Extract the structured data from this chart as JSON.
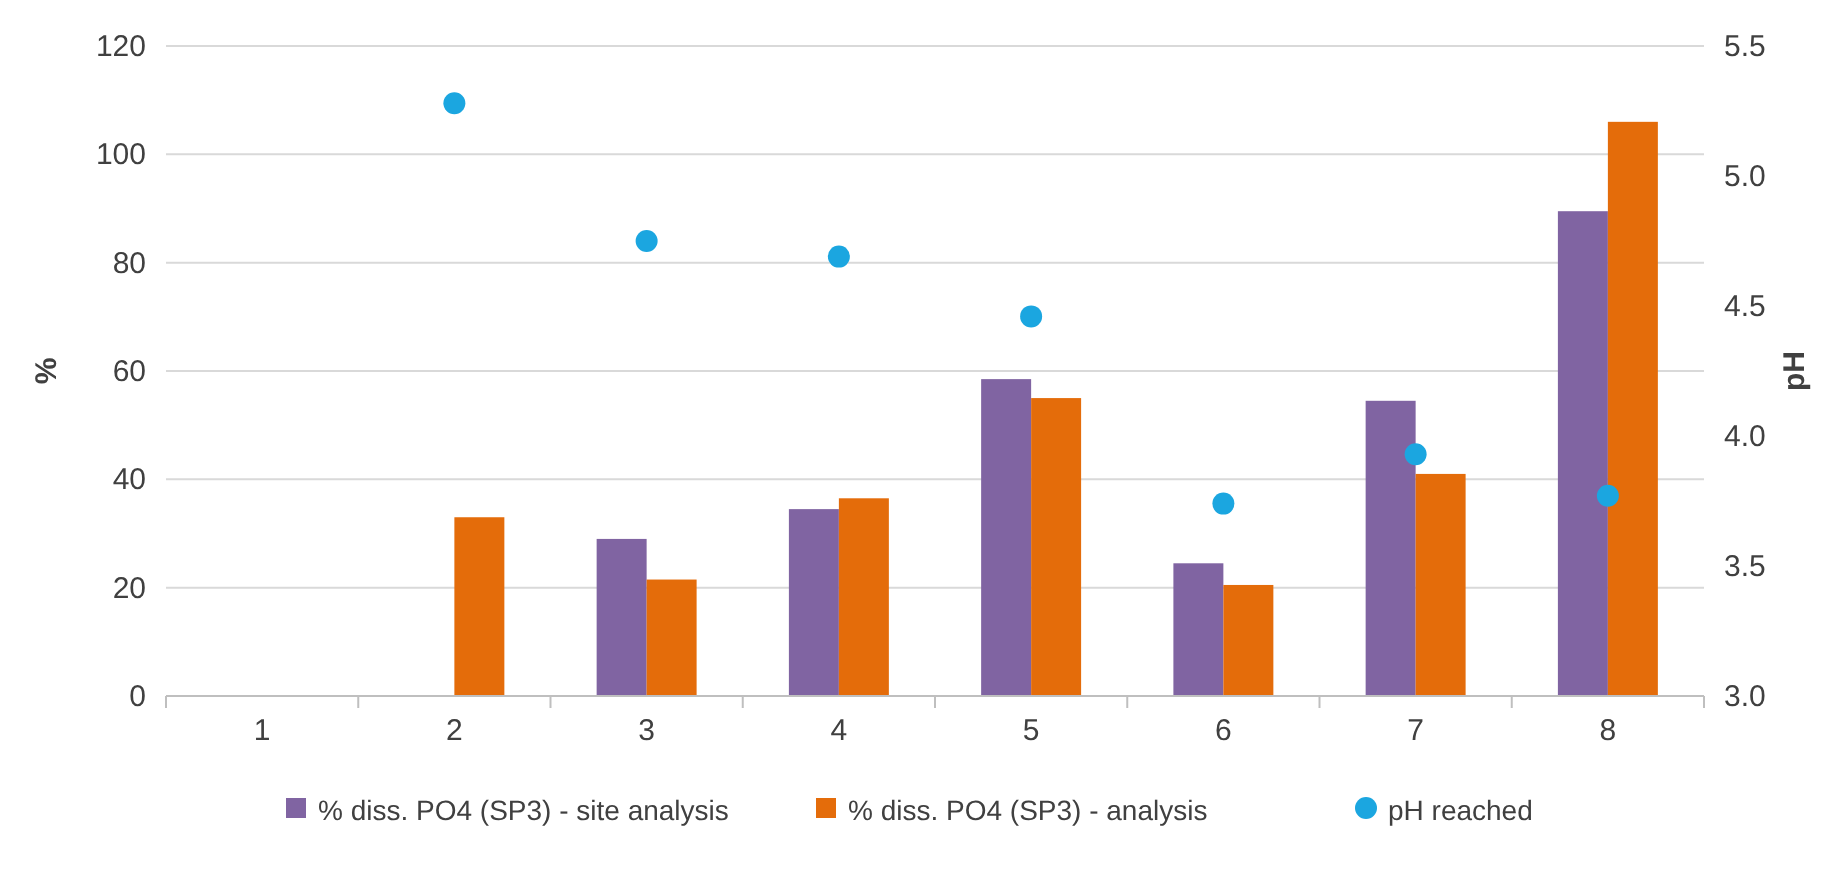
{
  "chart_data": {
    "type": "bar",
    "categories": [
      "1",
      "2",
      "3",
      "4",
      "5",
      "6",
      "7",
      "8"
    ],
    "series": [
      {
        "name": "% diss. PO4 (SP3) - site analysis",
        "color": "#8064a2",
        "values": [
          null,
          null,
          29,
          34.5,
          58.5,
          24.5,
          54.5,
          89.5
        ]
      },
      {
        "name": "% diss. PO4 (SP3) - analysis",
        "color": "#e46c0a",
        "values": [
          null,
          33,
          21.5,
          36.5,
          55,
          20.5,
          41,
          106
        ]
      },
      {
        "name": "pH reached",
        "type": "scatter",
        "axis": "y2",
        "color": "#1ba6e0",
        "marker": "circle",
        "x": [
          "1",
          "2",
          "3",
          "4",
          "5",
          "6",
          "7",
          "8"
        ],
        "values": [
          null,
          5.28,
          4.75,
          4.69,
          4.46,
          3.74,
          3.93,
          3.77
        ]
      }
    ],
    "ylabel": "%",
    "y2label": "pH",
    "ylim": [
      0,
      120
    ],
    "yticks": [
      0,
      20,
      40,
      60,
      80,
      100,
      120
    ],
    "y2lim": [
      3,
      5.5
    ],
    "y2ticks": [
      {
        "value": 3,
        "label": "3.0"
      },
      {
        "value": 3.5,
        "label": "3.5"
      },
      {
        "value": 4,
        "label": "4.0"
      },
      {
        "value": 4.5,
        "label": "4.5"
      },
      {
        "value": 5,
        "label": "5.0"
      },
      {
        "value": 5.5,
        "label": "5.5"
      }
    ],
    "grid": "y",
    "legend": "bottom"
  }
}
